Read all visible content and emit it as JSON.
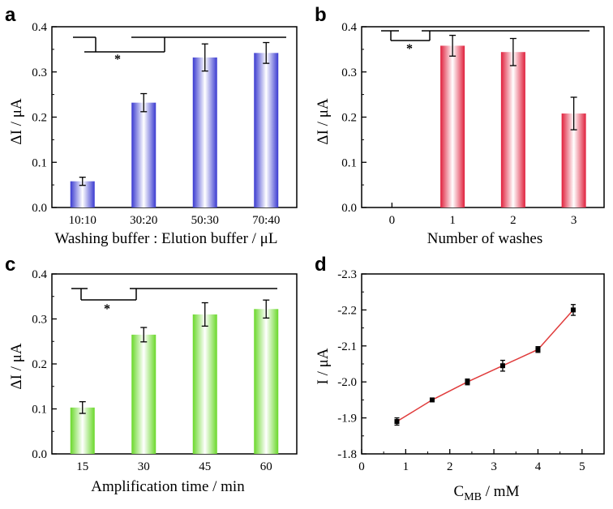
{
  "figure": {
    "panels": [
      {
        "letter": "a",
        "ylabel": "ΔI / μA",
        "xlabel": "Washing buffer : Elution buffer / μL",
        "significance": "*"
      },
      {
        "letter": "b",
        "ylabel": "ΔI / μA",
        "xlabel": "Number of washes",
        "significance": "*"
      },
      {
        "letter": "c",
        "ylabel": "ΔI / μA",
        "xlabel": "Amplification time / min",
        "significance": "*"
      },
      {
        "letter": "d",
        "ylabel": "I / μA",
        "xlabel_main": "C",
        "xlabel_sub": "MB",
        "xlabel_rest": " / mM"
      }
    ]
  },
  "chart_data": [
    {
      "type": "bar",
      "panel": "a",
      "categories": [
        "10:10",
        "30:20",
        "50:30",
        "70:40"
      ],
      "values": [
        0.058,
        0.232,
        0.332,
        0.342
      ],
      "errors": [
        0.009,
        0.02,
        0.03,
        0.023
      ],
      "ylim": [
        0,
        0.4
      ],
      "yticks": [
        "0.0",
        "0.1",
        "0.2",
        "0.3",
        "0.4"
      ],
      "bar_color": "#5b5bd8",
      "title": "",
      "xlabel": "Washing buffer : Elution buffer / μL",
      "ylabel": "ΔI / μA"
    },
    {
      "type": "bar",
      "panel": "b",
      "categories": [
        "0",
        "1",
        "2",
        "3"
      ],
      "values": [
        0,
        0.358,
        0.344,
        0.208
      ],
      "errors": [
        0,
        0.023,
        0.03,
        0.036
      ],
      "ylim": [
        0,
        0.4
      ],
      "yticks": [
        "0.0",
        "0.1",
        "0.2",
        "0.3",
        "0.4"
      ],
      "bar_color": "#e8405a",
      "title": "",
      "xlabel": "Number of washes",
      "ylabel": "ΔI / μA"
    },
    {
      "type": "bar",
      "panel": "c",
      "categories": [
        "15",
        "30",
        "45",
        "60"
      ],
      "values": [
        0.103,
        0.265,
        0.31,
        0.322
      ],
      "errors": [
        0.013,
        0.016,
        0.026,
        0.02
      ],
      "ylim": [
        0,
        0.4
      ],
      "yticks": [
        "0.0",
        "0.1",
        "0.2",
        "0.3",
        "0.4"
      ],
      "bar_color": "#88e04a",
      "title": "",
      "xlabel": "Amplification time / min",
      "ylabel": "ΔI / μA"
    },
    {
      "type": "line",
      "panel": "d",
      "x": [
        0.8,
        1.6,
        2.4,
        3.2,
        4.0,
        4.8
      ],
      "y": [
        -1.89,
        -1.95,
        -2.0,
        -2.045,
        -2.09,
        -2.2
      ],
      "errors": [
        0.01,
        0.005,
        0.008,
        0.015,
        0.008,
        0.015
      ],
      "xlim": [
        0,
        5.5
      ],
      "ylim": [
        -1.8,
        -2.3
      ],
      "xticks": [
        "0",
        "1",
        "2",
        "3",
        "4",
        "5"
      ],
      "yticks": [
        "-1.8",
        "-1.9",
        "-2.0",
        "-2.1",
        "-2.2",
        "-2.3"
      ],
      "line_color": "#e03c3c",
      "title": "",
      "xlabel": "CMB / mM",
      "ylabel": "I / μA"
    }
  ]
}
